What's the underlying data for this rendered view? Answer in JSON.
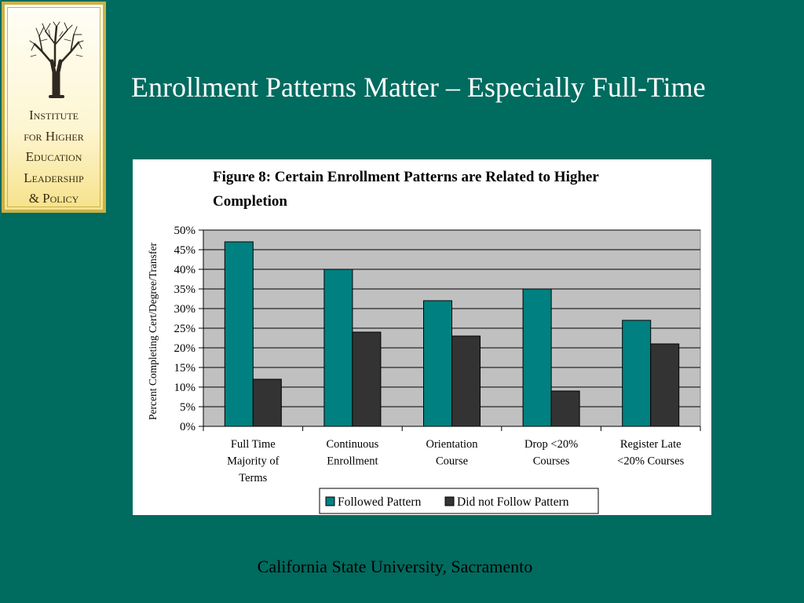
{
  "logo": {
    "lines": [
      "Institute",
      "for Higher",
      "Education",
      "Leadership",
      "& Policy"
    ],
    "icon": "tree-icon"
  },
  "slide": {
    "title": "Enrollment Patterns Matter – Especially Full-Time",
    "footer": "California State University, Sacramento"
  },
  "colors": {
    "background": "#006b5f",
    "followed": "#008080",
    "not_followed": "#333333",
    "plot_area": "#c0c0c0"
  },
  "chart_data": {
    "type": "bar",
    "title_lines": [
      "Figure 8:  Certain Enrollment Patterns are Related to Higher",
      "Completion"
    ],
    "ylabel": "Percent Completing Cert/Degree/Transfer",
    "xlabel": "",
    "ylim": [
      0,
      50
    ],
    "yticks": [
      "0%",
      "5%",
      "10%",
      "15%",
      "20%",
      "25%",
      "30%",
      "35%",
      "40%",
      "45%",
      "50%"
    ],
    "categories": [
      [
        "Full Time",
        "Majority of",
        "Terms"
      ],
      [
        "Continuous",
        "Enrollment"
      ],
      [
        "Orientation",
        "Course"
      ],
      [
        "Drop <20%",
        "Courses"
      ],
      [
        "Register Late",
        "<20% Courses"
      ]
    ],
    "series": [
      {
        "name": "Followed Pattern",
        "values": [
          47,
          40,
          32,
          35,
          27
        ]
      },
      {
        "name": "Did not Follow Pattern",
        "values": [
          12,
          24,
          23,
          9,
          21
        ]
      }
    ],
    "grid": true,
    "legend": "bottom"
  }
}
